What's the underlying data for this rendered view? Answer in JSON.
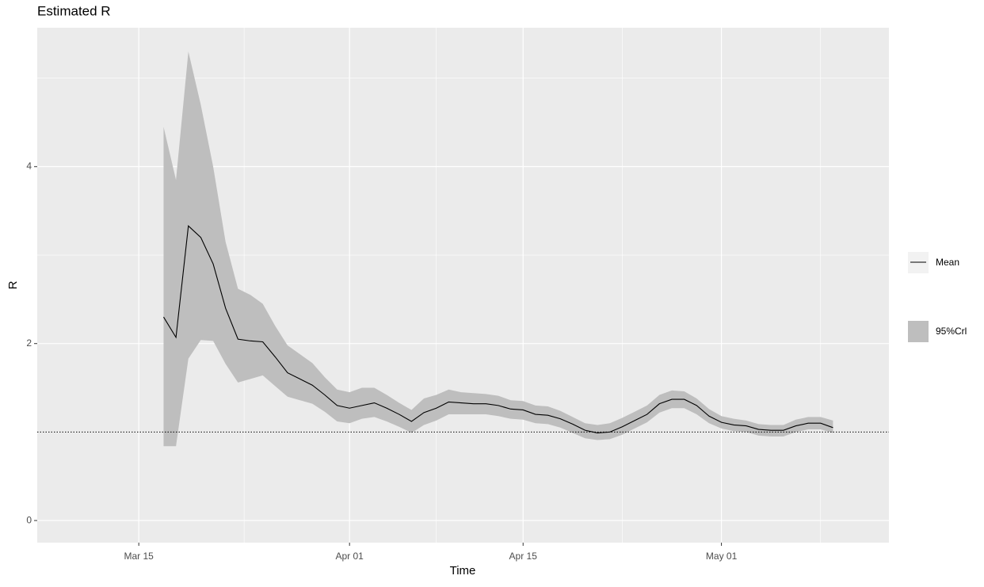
{
  "chart_data": {
    "type": "line",
    "title": "Estimated R",
    "x_label": "Time",
    "y_label": "R",
    "x": [
      "Mar 17",
      "Mar 18",
      "Mar 19",
      "Mar 20",
      "Mar 21",
      "Mar 22",
      "Mar 23",
      "Mar 24",
      "Mar 25",
      "Mar 26",
      "Mar 27",
      "Mar 28",
      "Mar 29",
      "Mar 30",
      "Mar 31",
      "Apr 01",
      "Apr 02",
      "Apr 03",
      "Apr 04",
      "Apr 05",
      "Apr 06",
      "Apr 07",
      "Apr 08",
      "Apr 09",
      "Apr 10",
      "Apr 11",
      "Apr 12",
      "Apr 13",
      "Apr 14",
      "Apr 15",
      "Apr 16",
      "Apr 17",
      "Apr 18",
      "Apr 19",
      "Apr 20",
      "Apr 21",
      "Apr 22",
      "Apr 23",
      "Apr 24",
      "Apr 25",
      "Apr 26",
      "Apr 27",
      "Apr 28",
      "Apr 29",
      "Apr 30",
      "May 01",
      "May 02",
      "May 03",
      "May 04",
      "May 05",
      "May 06",
      "May 07",
      "May 08",
      "May 09",
      "May 10"
    ],
    "series": [
      {
        "name": "Mean",
        "color": "#000000",
        "values": [
          2.3,
          2.07,
          3.33,
          3.2,
          2.9,
          2.4,
          2.05,
          2.03,
          2.02,
          1.85,
          1.67,
          1.6,
          1.53,
          1.42,
          1.3,
          1.27,
          1.3,
          1.33,
          1.27,
          1.2,
          1.12,
          1.22,
          1.27,
          1.34,
          1.33,
          1.32,
          1.32,
          1.3,
          1.26,
          1.25,
          1.2,
          1.19,
          1.15,
          1.09,
          1.02,
          0.99,
          1.0,
          1.06,
          1.13,
          1.2,
          1.32,
          1.37,
          1.37,
          1.3,
          1.18,
          1.11,
          1.08,
          1.07,
          1.03,
          1.02,
          1.02,
          1.07,
          1.1,
          1.1,
          1.05
        ]
      }
    ],
    "band": {
      "name": "95%Crl",
      "color": "#bebebe",
      "upper": [
        4.45,
        3.85,
        5.3,
        4.7,
        4.0,
        3.15,
        2.62,
        2.55,
        2.45,
        2.2,
        1.98,
        1.88,
        1.78,
        1.62,
        1.48,
        1.45,
        1.5,
        1.5,
        1.42,
        1.33,
        1.25,
        1.38,
        1.42,
        1.48,
        1.45,
        1.44,
        1.43,
        1.41,
        1.36,
        1.35,
        1.3,
        1.29,
        1.24,
        1.17,
        1.1,
        1.08,
        1.1,
        1.16,
        1.23,
        1.3,
        1.42,
        1.47,
        1.46,
        1.38,
        1.26,
        1.18,
        1.15,
        1.13,
        1.09,
        1.08,
        1.08,
        1.14,
        1.17,
        1.17,
        1.13
      ],
      "lower": [
        0.84,
        0.84,
        1.83,
        2.04,
        2.03,
        1.77,
        1.56,
        1.6,
        1.64,
        1.52,
        1.4,
        1.36,
        1.32,
        1.23,
        1.12,
        1.1,
        1.15,
        1.17,
        1.12,
        1.06,
        0.99,
        1.08,
        1.13,
        1.2,
        1.2,
        1.2,
        1.2,
        1.18,
        1.15,
        1.14,
        1.1,
        1.09,
        1.05,
        0.99,
        0.93,
        0.91,
        0.92,
        0.97,
        1.04,
        1.11,
        1.22,
        1.27,
        1.27,
        1.2,
        1.1,
        1.04,
        1.01,
        1.0,
        0.96,
        0.95,
        0.95,
        1.0,
        1.03,
        1.03,
        0.99
      ]
    },
    "hline": 1,
    "xlim": [
      "Mar 07",
      "May 14"
    ],
    "xticks": [
      "Mar 15",
      "Apr 01",
      "Apr 15",
      "May 01"
    ],
    "ylim": [
      -0.25,
      5.57
    ],
    "yticks": [
      0,
      2,
      4
    ],
    "grid": true,
    "legend_position": "right"
  }
}
